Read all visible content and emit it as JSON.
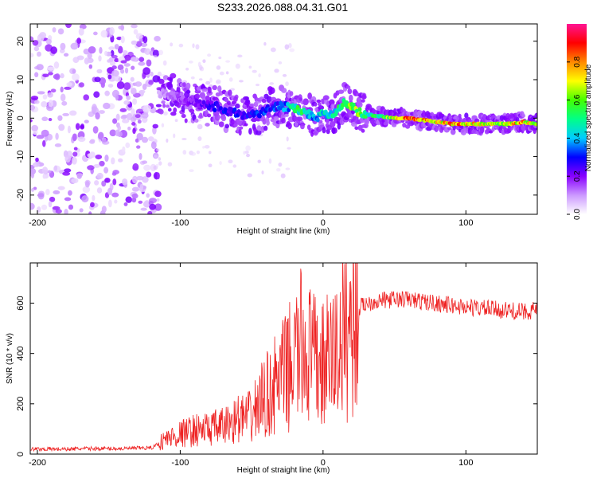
{
  "title": "S233.2026.088.04.31.G01",
  "chart_data": [
    {
      "type": "heatmap",
      "name": "spectrogram",
      "xlabel": "Height of straight line (km)",
      "ylabel": "Frequency (Hz)",
      "xlim": [
        -205,
        150
      ],
      "ylim": [
        -25,
        24.5
      ],
      "xticks": [
        -200,
        -100,
        0,
        100
      ],
      "yticks": [
        20,
        10,
        0,
        -10,
        -20
      ],
      "trace": {
        "x": [
          -115,
          -105,
          -95,
          -85,
          -75,
          -65,
          -55,
          -45,
          -35,
          -25,
          -20,
          -15,
          -10,
          -5,
          0,
          5,
          10,
          15,
          20,
          25,
          30,
          40,
          50,
          60,
          70,
          80,
          90,
          100,
          110,
          120,
          130,
          140,
          150
        ],
        "frequency": [
          6.5,
          6,
          4,
          3.5,
          3,
          1.5,
          1,
          1,
          3,
          3,
          2.5,
          2,
          1,
          0,
          1.5,
          1,
          2,
          4,
          3,
          1.5,
          1,
          0.5,
          0,
          0,
          -0.5,
          -1,
          -1.5,
          -1.5,
          -1.5,
          -1.5,
          -1.5,
          -1,
          -1.5
        ],
        "amplitude": [
          0.1,
          0.15,
          0.2,
          0.25,
          0.3,
          0.3,
          0.3,
          0.35,
          0.35,
          0.4,
          0.6,
          0.55,
          0.45,
          0.4,
          0.5,
          0.5,
          0.55,
          0.6,
          0.65,
          0.65,
          0.55,
          0.55,
          0.85,
          0.95,
          0.85,
          0.8,
          0.9,
          0.85,
          0.75,
          0.75,
          0.8,
          0.85,
          0.7
        ]
      },
      "noise_region_x": [
        -205,
        -115
      ]
    },
    {
      "type": "line",
      "name": "snr",
      "xlabel": "Height of straight line (km)",
      "ylabel": "SNR (10 * v/v)",
      "xlim": [
        -205,
        150
      ],
      "ylim": [
        0,
        760
      ],
      "xticks": [
        -200,
        -100,
        0,
        100
      ],
      "yticks": [
        0,
        200,
        400,
        600
      ],
      "series": [
        {
          "name": "SNR",
          "color": "#ee2222",
          "x": [
            -205,
            -180,
            -160,
            -140,
            -120,
            -110,
            -100,
            -90,
            -80,
            -70,
            -60,
            -50,
            -45,
            -40,
            -35,
            -30,
            -25,
            -20,
            -15,
            -10,
            -5,
            0,
            5,
            10,
            15,
            20,
            25,
            30,
            40,
            50,
            60,
            70,
            80,
            90,
            100,
            110,
            120,
            130,
            140,
            150
          ],
          "values": [
            20,
            20,
            22,
            22,
            25,
            60,
            80,
            95,
            100,
            110,
            140,
            150,
            200,
            230,
            260,
            300,
            330,
            380,
            430,
            400,
            360,
            350,
            380,
            410,
            480,
            520,
            580,
            600,
            610,
            615,
            615,
            605,
            600,
            590,
            585,
            580,
            575,
            570,
            565,
            575
          ]
        }
      ]
    },
    {
      "type": "colorbar",
      "name": "colorbar",
      "label": "Normalized spectral amplitude",
      "range": [
        0,
        1
      ],
      "ticks": [
        "0.0",
        "0.2",
        "0.4",
        "0.6",
        "0.8"
      ],
      "tick_values": [
        0,
        0.2,
        0.4,
        0.6,
        0.8
      ],
      "colors": [
        "#ffffff",
        "#cc99ff",
        "#8800ff",
        "#0000ff",
        "#00ccff",
        "#00ff88",
        "#44ff00",
        "#ffff00",
        "#ff8800",
        "#ff0000",
        "#ff1493"
      ]
    }
  ]
}
